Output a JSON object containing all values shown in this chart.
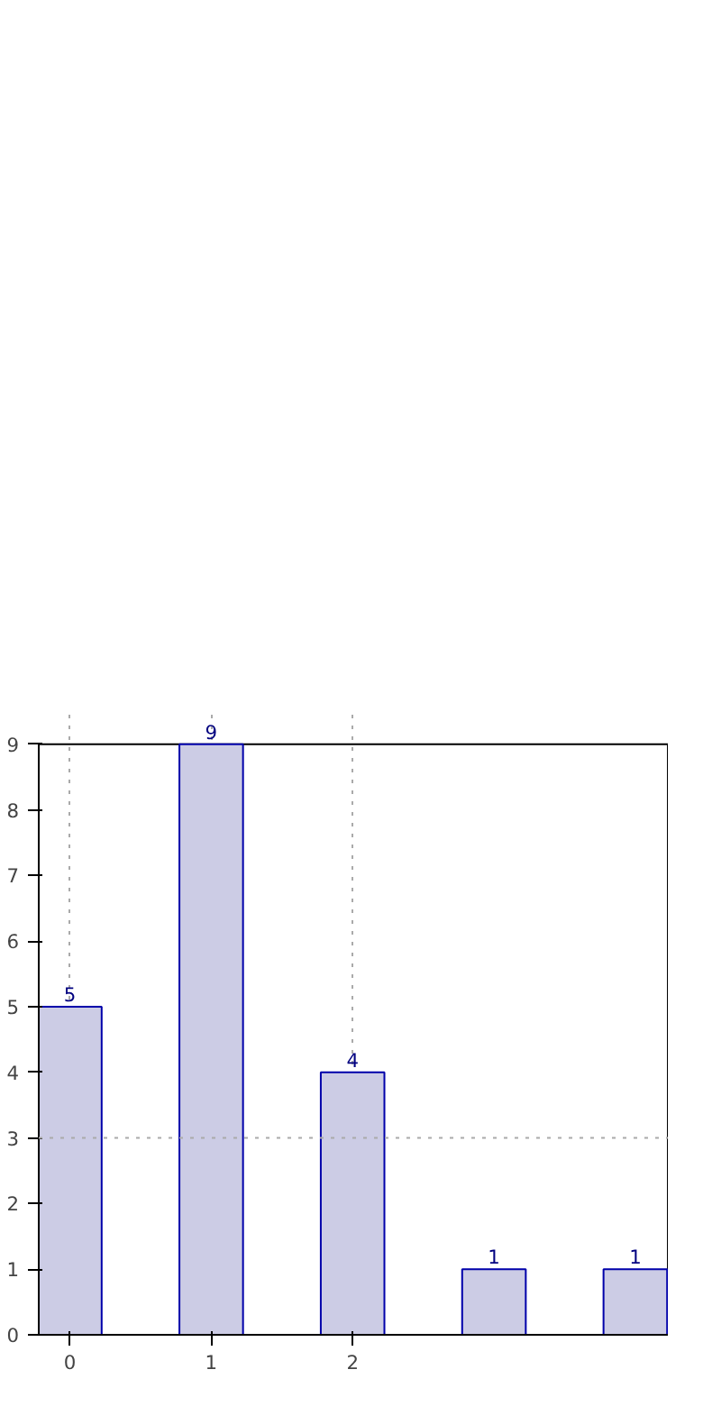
{
  "chart_data": {
    "type": "bar",
    "x": [
      0,
      1,
      2,
      3,
      4
    ],
    "values": [
      5,
      9,
      4,
      1,
      1
    ],
    "color": "#ccccE5",
    "xlim": [
      -0.22,
      4.23
    ],
    "xticks": [
      0,
      1,
      2
    ],
    "ylim": [
      0,
      9
    ],
    "yticks": [
      0,
      1,
      2,
      3,
      4,
      5,
      6,
      7,
      8,
      9
    ],
    "grid": "x",
    "data_labels": true,
    "ref_lines": [
      {
        "axis": "y",
        "value": 3,
        "line_style": "dotted"
      }
    ]
  }
}
